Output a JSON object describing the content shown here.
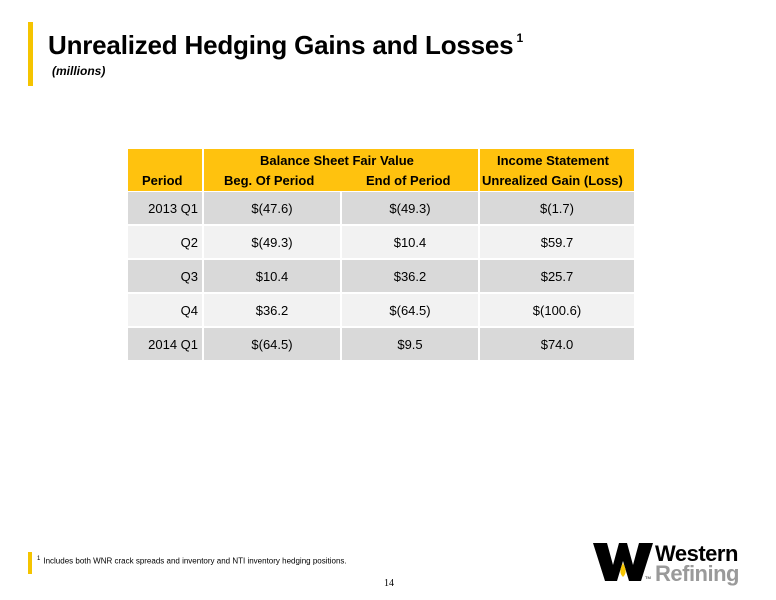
{
  "header": {
    "title": "Unrealized Hedging Gains and Losses",
    "title_footnote_mark": "1",
    "subtitle": "(millions)"
  },
  "table": {
    "group_headers": {
      "balance_sheet": "Balance Sheet Fair Value",
      "income_statement": "Income Statement"
    },
    "columns": {
      "period": "Period",
      "beg": "Beg. Of Period",
      "end": "End of Period",
      "gain": "Unrealized Gain (Loss)"
    },
    "rows": [
      {
        "period": "2013  Q1",
        "beg": "$(47.6)",
        "end": "$(49.3)",
        "gain": "$(1.7)"
      },
      {
        "period": "Q2",
        "beg": "$(49.3)",
        "end": "$10.4",
        "gain": "$59.7"
      },
      {
        "period": "Q3",
        "beg": "$10.4",
        "end": "$36.2",
        "gain": "$25.7"
      },
      {
        "period": "Q4",
        "beg": "$36.2",
        "end": "$(64.5)",
        "gain": "$(100.6)"
      },
      {
        "period": "2014  Q1",
        "beg": "$(64.5)",
        "end": "$9.5",
        "gain": "$74.0"
      }
    ]
  },
  "footnote": {
    "mark": "1",
    "text": "Includes both WNR crack spreads and inventory and NTI inventory hedging positions."
  },
  "page_number": "14",
  "logo": {
    "line1": "Western",
    "line2": "Refining",
    "tm": "TM",
    "accent_color": "#f5c400"
  },
  "colors": {
    "accent": "#ffc20e",
    "row_dark": "#d9d9d9",
    "row_light": "#f2f2f2"
  }
}
